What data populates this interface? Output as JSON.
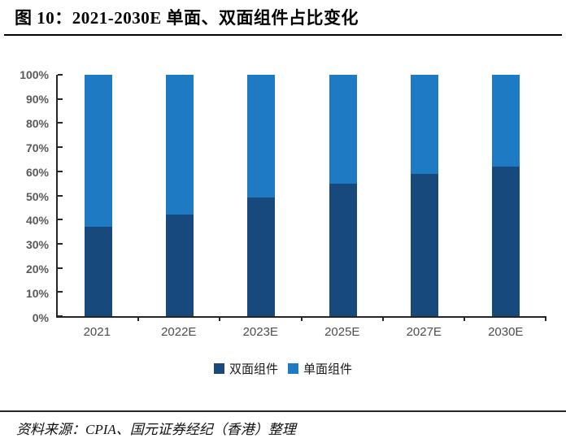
{
  "figure": {
    "title": "图 10：2021-2030E 单面、双面组件占比变化",
    "source": "资料来源：CPIA、国元证券经纪（香港）整理"
  },
  "chart_data": {
    "type": "bar",
    "subtype": "stacked-percent",
    "title": "图 10：2021-2030E 单面、双面组件占比变化",
    "categories": [
      "2021",
      "2022E",
      "2023E",
      "2025E",
      "2027E",
      "2030E"
    ],
    "series": [
      {
        "name": "双面组件",
        "color": "#17497C",
        "values": [
          37,
          42,
          49,
          55,
          59,
          62
        ]
      },
      {
        "name": "单面组件",
        "color": "#1F7AC4",
        "values": [
          63,
          58,
          51,
          45,
          41,
          38
        ]
      }
    ],
    "xlabel": "",
    "ylabel": "",
    "ylim": [
      0,
      100
    ],
    "y_tick_labels": [
      "0%",
      "10%",
      "20%",
      "30%",
      "40%",
      "50%",
      "60%",
      "70%",
      "80%",
      "90%",
      "100%"
    ],
    "grid": false,
    "legend_position": "bottom"
  },
  "colors": {
    "axis": "#262626",
    "tick_label": "#595959",
    "x_label": "#4d4d4d"
  }
}
